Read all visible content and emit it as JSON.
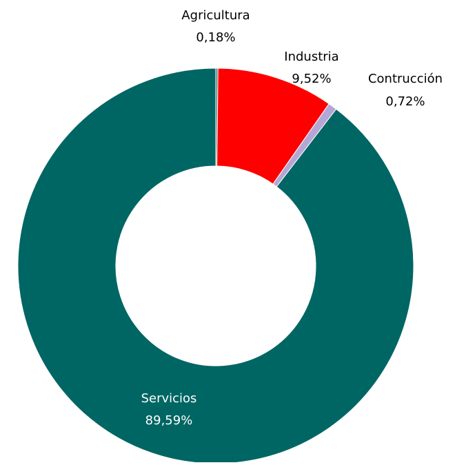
{
  "chart_data": {
    "type": "pie",
    "donut": true,
    "title": "",
    "categories": [
      "Agricultura",
      "Industria",
      "Contrucción",
      "Servicios"
    ],
    "values": [
      0.18,
      9.52,
      0.72,
      89.59
    ],
    "value_labels": [
      "0,18%",
      "9,52%",
      "0,72%",
      "89,59%"
    ],
    "colors": [
      "#5f7f7c",
      "#ff0000",
      "#b4a7d6",
      "#006663"
    ],
    "label_colors": [
      "#000000",
      "#000000",
      "#000000",
      "#ffffff"
    ],
    "legend": "none",
    "start_angle": "12 o'clock",
    "direction": "clockwise"
  }
}
